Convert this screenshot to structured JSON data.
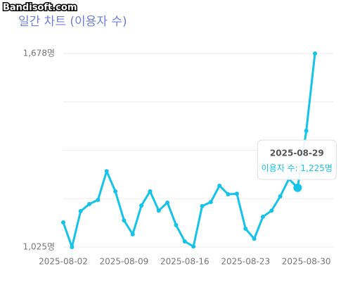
{
  "watermark": "Bandisoft.com",
  "chart_data": {
    "type": "line",
    "title": "일간 차트 (이용자 수)",
    "x": [
      "2025-08-02",
      "2025-08-03",
      "2025-08-04",
      "2025-08-05",
      "2025-08-06",
      "2025-08-07",
      "2025-08-08",
      "2025-08-09",
      "2025-08-10",
      "2025-08-11",
      "2025-08-12",
      "2025-08-13",
      "2025-08-14",
      "2025-08-15",
      "2025-08-16",
      "2025-08-17",
      "2025-08-18",
      "2025-08-19",
      "2025-08-20",
      "2025-08-21",
      "2025-08-22",
      "2025-08-23",
      "2025-08-24",
      "2025-08-25",
      "2025-08-26",
      "2025-08-27",
      "2025-08-28",
      "2025-08-29",
      "2025-08-30",
      "2025-08-31"
    ],
    "series": [
      {
        "name": "이용자 수",
        "color": "#16c3e8",
        "values": [
          1108,
          1025,
          1146,
          1170,
          1184,
          1281,
          1213,
          1115,
          1068,
          1165,
          1213,
          1148,
          1175,
          1099,
          1044,
          1027,
          1163,
          1177,
          1232,
          1203,
          1205,
          1087,
          1053,
          1127,
          1148,
          1196,
          1255,
          1225,
          1417,
          1678
        ]
      }
    ],
    "xlim": [
      "2025-08-02",
      "2025-08-31"
    ],
    "xticks": [
      "2025-08-02",
      "2025-08-09",
      "2025-08-16",
      "2025-08-23",
      "2025-08-30"
    ],
    "ylim": [
      1025,
      1678
    ],
    "yticks": [
      {
        "value": 1025,
        "label": "1,025명"
      },
      {
        "value": 1678,
        "label": "1,678명"
      }
    ],
    "grid": true,
    "tooltip": {
      "x": "2025-08-29",
      "label": "1,225명"
    }
  }
}
